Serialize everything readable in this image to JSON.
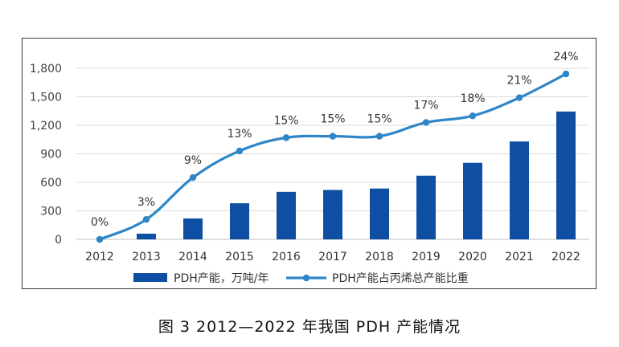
{
  "caption": "图 3  2012—2022 年我国 PDH 产能情况",
  "chart_data": {
    "type": "bar",
    "categories": [
      "2012",
      "2013",
      "2014",
      "2015",
      "2016",
      "2017",
      "2018",
      "2019",
      "2020",
      "2021",
      "2022"
    ],
    "y_ticks": [
      "0",
      "300",
      "600",
      "900",
      "1,200",
      "1,500",
      "1,800"
    ],
    "ylim": [
      0,
      1800
    ],
    "grid": true,
    "legend_position": "bottom",
    "series": [
      {
        "name": "PDH产能，万吨/年",
        "type": "bar",
        "color": "#0E4FA3",
        "values": [
          0,
          60,
          220,
          380,
          500,
          520,
          535,
          670,
          805,
          1030,
          1345
        ]
      },
      {
        "name": "PDH产能占丙烯总产能比重",
        "type": "line",
        "color": "#2E86C8",
        "values": [
          0,
          210,
          650,
          930,
          1070,
          1085,
          1085,
          1230,
          1300,
          1490,
          1740
        ],
        "labels": [
          "0%",
          "3%",
          "9%",
          "13%",
          "15%",
          "15%",
          "15%",
          "17%",
          "18%",
          "21%",
          "24%"
        ]
      }
    ]
  }
}
